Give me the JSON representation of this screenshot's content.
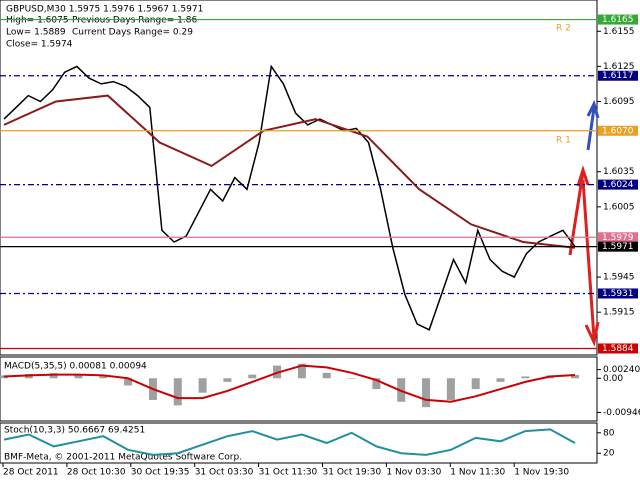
{
  "header": {
    "line1": "GBPUSD,M30  1.5975 1.5976 1.5967 1.5971",
    "high": "High= 1.6075",
    "prev_range": "Previous Days Range= 1.86",
    "low": "Low= 1.5889",
    "cur_range": "Current Days Range= 0.29",
    "close": "Close= 1.5974"
  },
  "annotations": [
    "R 2",
    "R 1"
  ],
  "time_axis": [
    "28 Oct 2011",
    "28 Oct 10:30",
    "30 Oct 19:35",
    "31 Oct 03:30",
    "31 Oct 11:30",
    "31 Oct 19:30",
    "1 Nov 03:30",
    "1 Nov 11:30",
    "1 Nov 19:30"
  ],
  "chart_data": [
    {
      "type": "line",
      "ylim": [
        1.5881,
        1.618
      ],
      "yticks": [
        1.6155,
        1.6125,
        1.6095,
        1.6035,
        1.6005,
        1.5945,
        1.5915
      ],
      "series": [
        {
          "color": "#000000",
          "values": [
            1.608,
            1.609,
            1.61,
            1.6095,
            1.6105,
            1.612,
            1.6125,
            1.6115,
            1.611,
            1.6112,
            1.6108,
            1.61,
            1.609,
            1.5985,
            1.5975,
            1.598,
            1.6,
            1.602,
            1.601,
            1.603,
            1.602,
            1.606,
            1.6125,
            1.611,
            1.6085,
            1.6075,
            1.608,
            1.6075,
            1.607,
            1.6072,
            1.606,
            1.602,
            1.597,
            1.593,
            1.5905,
            1.59,
            1.593,
            1.596,
            1.594,
            1.5985,
            1.596,
            1.595,
            1.5945,
            1.5965,
            1.5975,
            1.598,
            1.5985,
            1.5971
          ]
        },
        {
          "color": "#8b1a1a",
          "values": [
            1.6075,
            1.6095,
            1.61,
            1.606,
            1.604,
            1.607,
            1.608,
            1.6065,
            1.602,
            1.599,
            1.5975,
            1.597
          ]
        }
      ],
      "levels": [
        {
          "value": 1.6165,
          "label": "1.6165",
          "color": "#33aa33"
        },
        {
          "value": 1.6117,
          "label": "1.6117",
          "color": "#000080"
        },
        {
          "value": 1.607,
          "label": "1.6070",
          "color": "#e8a020"
        },
        {
          "value": 1.6024,
          "label": "1.6024",
          "color": "#000080"
        },
        {
          "value": 1.5979,
          "label": "1.5979",
          "color": "#e07090"
        },
        {
          "value": 1.5971,
          "label": "1.5971",
          "color": "#000000"
        },
        {
          "value": 1.5931,
          "label": "1.5931",
          "color": "#000080"
        },
        {
          "value": 1.5884,
          "label": "1.5884",
          "color": "#cc0000"
        }
      ]
    },
    {
      "type": "histogram",
      "title": "MACD(5,35,5) 0.00081 0.00094",
      "ylim": [
        -0.011,
        0.0045
      ],
      "yticks": [
        {
          "value": 0.0024,
          "label": "0.00240"
        },
        {
          "value": 0,
          "label": "0.00"
        },
        {
          "value": -0.00946,
          "label": "-0.00946"
        }
      ],
      "series": [
        {
          "color": "#a0a0a0",
          "values": [
            0.0008,
            0.0012,
            0.0014,
            0.001,
            0.0005,
            -0.002,
            -0.006,
            -0.0075,
            -0.004,
            -0.001,
            0.001,
            0.0035,
            0.004,
            0.0015,
            0,
            -0.003,
            -0.0065,
            -0.008,
            -0.006,
            -0.003,
            -0.001,
            0.0005,
            0.0008,
            0.0009
          ]
        },
        {
          "color": "#cc0000",
          "values": [
            0.0005,
            0.0008,
            0.001,
            0.001,
            0.0008,
            0,
            -0.003,
            -0.0055,
            -0.0055,
            -0.0035,
            -0.001,
            0.0015,
            0.0035,
            0.003,
            0.0015,
            -0.0005,
            -0.0035,
            -0.006,
            -0.0065,
            -0.005,
            -0.003,
            -0.001,
            0.0005,
            0.0009
          ]
        }
      ]
    },
    {
      "type": "line",
      "title": "Stoch(10,3,3) 50.6667 69.4251",
      "subtitle": "BMF-Meta, © 2001-2011 MetaQuotes Software Corp.",
      "ylim": [
        0,
        100
      ],
      "yticks": [
        80,
        20
      ],
      "series": [
        {
          "color": "#2090a0",
          "values": [
            60,
            75,
            40,
            55,
            70,
            30,
            15,
            20,
            45,
            70,
            85,
            60,
            75,
            50,
            80,
            40,
            20,
            15,
            30,
            65,
            55,
            85,
            90,
            50
          ]
        }
      ]
    }
  ]
}
